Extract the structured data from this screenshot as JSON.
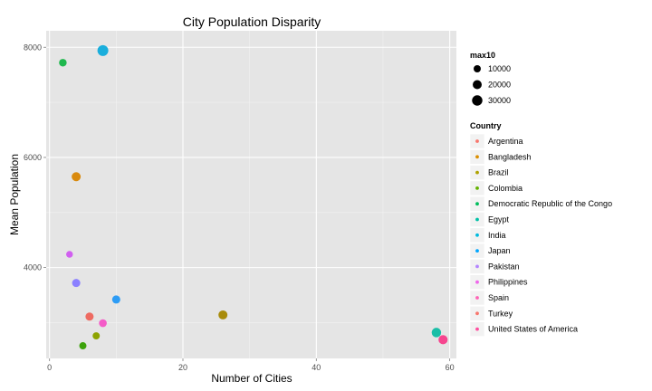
{
  "chart_data": {
    "type": "scatter",
    "title": "City Population Disparity",
    "xlabel": "Number of Cities",
    "ylabel": "Mean Population",
    "xlim": [
      -0.5,
      61
    ],
    "ylim": [
      2350,
      8300
    ],
    "x_ticks": [
      0,
      20,
      40,
      60
    ],
    "y_ticks": [
      4000,
      6000,
      8000
    ],
    "grid": true,
    "legend_position": "right",
    "size_legend": {
      "title": "max10",
      "entries": [
        {
          "label": "10000",
          "value": 10000
        },
        {
          "label": "20000",
          "value": 20000
        },
        {
          "label": "30000",
          "value": 30000
        }
      ]
    },
    "color_legend": {
      "title": "Country",
      "entries": [
        {
          "label": "Argentina",
          "color": "#F8766D"
        },
        {
          "label": "Bangladesh",
          "color": "#DB8E00"
        },
        {
          "label": "Brazil",
          "color": "#AEA200"
        },
        {
          "label": "Colombia",
          "color": "#64B200"
        },
        {
          "label": "Democratic Republic of the Congo",
          "color": "#00BD5C"
        },
        {
          "label": "Egypt",
          "color": "#00C1A7"
        },
        {
          "label": "India",
          "color": "#00BADE"
        },
        {
          "label": "Japan",
          "color": "#00A6FF"
        },
        {
          "label": "Pakistan",
          "color": "#B385FF"
        },
        {
          "label": "Philippines",
          "color": "#EF67EB"
        },
        {
          "label": "Spain",
          "color": "#FF63B6"
        },
        {
          "label": "Turkey",
          "color": "#F8766D"
        },
        {
          "label": "United States of America",
          "color": "#FF4FA0"
        }
      ]
    },
    "points": [
      {
        "x": 2,
        "y": 7720,
        "size": 12000,
        "color": "#1FB84E"
      },
      {
        "x": 8,
        "y": 7940,
        "size": 34000,
        "color": "#1AAEDC"
      },
      {
        "x": 4,
        "y": 5650,
        "size": 20000,
        "color": "#D98A0E"
      },
      {
        "x": 3,
        "y": 4240,
        "size": 8000,
        "color": "#D160F0"
      },
      {
        "x": 4,
        "y": 3720,
        "size": 15000,
        "color": "#8B80FF"
      },
      {
        "x": 10,
        "y": 3420,
        "size": 15000,
        "color": "#2D9CF5"
      },
      {
        "x": 6,
        "y": 3110,
        "size": 15000,
        "color": "#EE6B62"
      },
      {
        "x": 8,
        "y": 2990,
        "size": 13000,
        "color": "#F45BC8"
      },
      {
        "x": 7,
        "y": 2760,
        "size": 10000,
        "color": "#8DA300"
      },
      {
        "x": 5,
        "y": 2580,
        "size": 10000,
        "color": "#3DA20C"
      },
      {
        "x": 26,
        "y": 3140,
        "size": 20000,
        "color": "#A88B0A"
      },
      {
        "x": 58,
        "y": 2820,
        "size": 23000,
        "color": "#1ABEA7"
      },
      {
        "x": 59,
        "y": 2690,
        "size": 21000,
        "color": "#F6468F"
      }
    ]
  }
}
